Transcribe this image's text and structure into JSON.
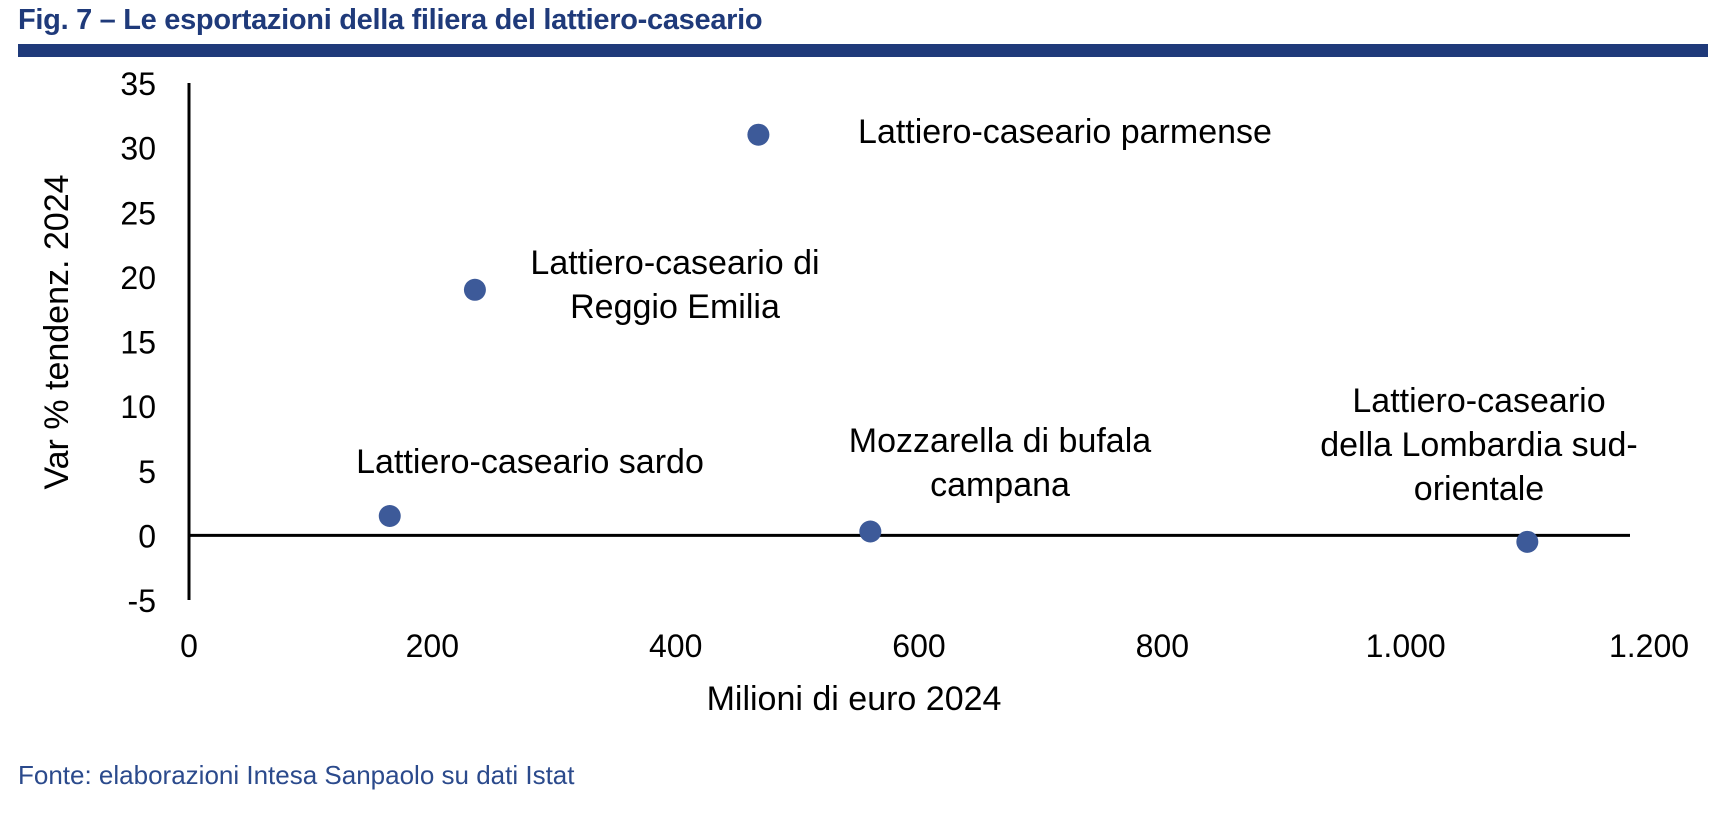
{
  "figure": {
    "title": "Fig. 7 – Le esportazioni della filiera del lattiero-caseario",
    "source": "Fonte: elaborazioni Intesa Sanpaolo su dati Istat"
  },
  "colors": {
    "brand": "#1f3a7a",
    "point": "#3d5a99",
    "source_text": "#2b4a8c"
  },
  "chart_data": {
    "type": "scatter",
    "xlabel": "Milioni di euro 2024",
    "ylabel": "Var % tendenz. 2024",
    "xlim": [
      0,
      1200
    ],
    "ylim": [
      -5,
      35
    ],
    "x_ticks": [
      0,
      200,
      400,
      600,
      800,
      1000,
      1200
    ],
    "x_tick_labels": [
      "0",
      "200",
      "400",
      "600",
      "800",
      "1.000",
      "1.200"
    ],
    "y_ticks": [
      -5,
      0,
      5,
      10,
      15,
      20,
      25,
      30,
      35
    ],
    "y_tick_labels": [
      "-5",
      "0",
      "5",
      "10",
      "15",
      "20",
      "25",
      "30",
      "35"
    ],
    "grid": false,
    "legend": "none",
    "points": [
      {
        "label": [
          "Lattiero-caseario sardo"
        ],
        "x": 165,
        "y": 1.5
      },
      {
        "label": [
          "Lattiero-caseario di",
          "Reggio Emilia"
        ],
        "x": 235,
        "y": 19
      },
      {
        "label": [
          "Lattiero-caseario parmense"
        ],
        "x": 468,
        "y": 31
      },
      {
        "label": [
          "Mozzarella di bufala",
          "campana"
        ],
        "x": 560,
        "y": 0.3
      },
      {
        "label": [
          "Lattiero-caseario",
          "della Lombardia sud-",
          "orientale"
        ],
        "x": 1100,
        "y": -0.5
      }
    ]
  }
}
